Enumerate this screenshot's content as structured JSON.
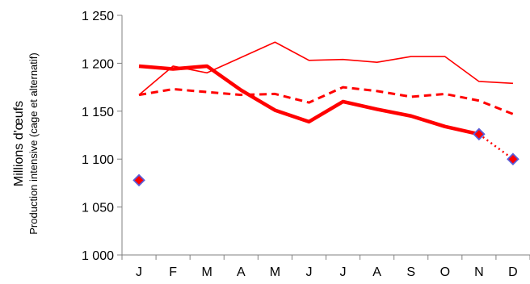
{
  "chart_data": {
    "type": "line",
    "title": "",
    "xlabel": "",
    "ylabel": "Millions d'œufs",
    "ylabel_sub": "Production intensive (cage et alternatif)",
    "categories": [
      "J",
      "F",
      "M",
      "A",
      "M",
      "J",
      "J",
      "A",
      "S",
      "O",
      "N",
      "D"
    ],
    "ylim": [
      1000,
      1250
    ],
    "yticks": [
      1000,
      1050,
      1100,
      1150,
      1200,
      1250
    ],
    "ytick_labels": [
      "1 000",
      "1 050",
      "1 100",
      "1 150",
      "1 200",
      "1 250"
    ],
    "grid": false,
    "legend": "none",
    "series": [
      {
        "values": [
          1167,
          1197,
          1190,
          1206,
          1222,
          1203,
          1204,
          1201,
          1207,
          1207,
          1181,
          1179
        ],
        "color": "#ff0000",
        "style": "thin"
      },
      {
        "values": [
          1167,
          1173,
          1170,
          1167,
          1168,
          1159,
          1175,
          1171,
          1165,
          1168,
          1161,
          1147
        ],
        "color": "#ff0000",
        "style": "dashed"
      },
      {
        "values": [
          1197,
          1194,
          1197,
          1172,
          1151,
          1139,
          1160,
          1152,
          1145,
          1134,
          1126,
          null
        ],
        "color": "#ff0000",
        "style": "thick"
      },
      {
        "values": [
          null,
          null,
          null,
          null,
          null,
          null,
          null,
          null,
          null,
          null,
          1126,
          1100
        ],
        "color": "#ff0000",
        "style": "dotted"
      },
      {
        "values": [
          1078,
          null,
          null,
          null,
          null,
          null,
          null,
          null,
          null,
          null,
          1126,
          1100
        ],
        "color": "#ff0000",
        "marker_edge": "#5b5bd6",
        "style": "markers"
      }
    ]
  }
}
